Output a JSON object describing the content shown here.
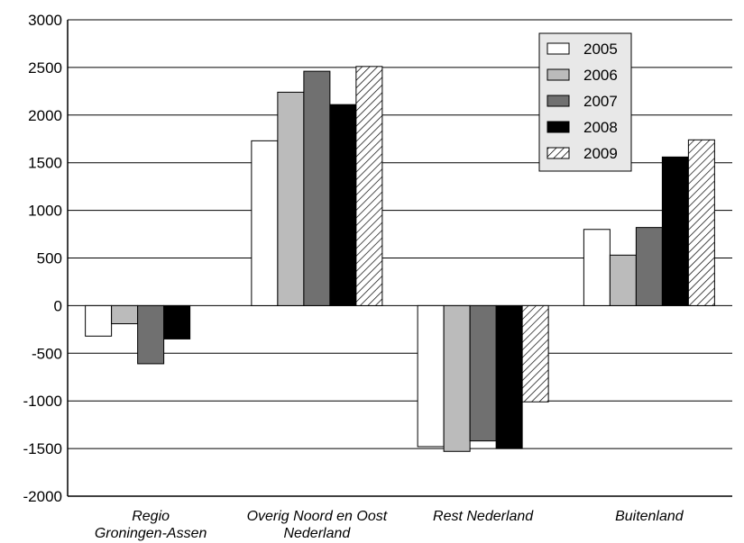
{
  "chart_data": {
    "type": "bar",
    "categories": [
      [
        "Regio",
        "Groningen-Assen"
      ],
      [
        "Overig Noord en Oost",
        "Nederland"
      ],
      [
        "Rest Nederland"
      ],
      [
        "Buitenland"
      ]
    ],
    "series": [
      {
        "name": "2005",
        "fill": "#ffffff",
        "values": [
          -320,
          1730,
          -1480,
          800
        ]
      },
      {
        "name": "2006",
        "fill": "#bbbbbb",
        "values": [
          -190,
          2240,
          -1530,
          530
        ]
      },
      {
        "name": "2007",
        "fill": "#707070",
        "values": [
          -610,
          2460,
          -1420,
          820
        ]
      },
      {
        "name": "2008",
        "fill": "#000000",
        "values": [
          -350,
          2110,
          -1500,
          1560
        ]
      },
      {
        "name": "2009",
        "fill": "hatch",
        "values": [
          0,
          2510,
          -1010,
          1740
        ]
      }
    ],
    "ylim": [
      -2000,
      3000
    ],
    "yticks": [
      3000,
      2500,
      2000,
      1500,
      1000,
      500,
      0,
      -500,
      -1000,
      -1500,
      -2000
    ],
    "grid": true,
    "legend_position": "top-right"
  }
}
